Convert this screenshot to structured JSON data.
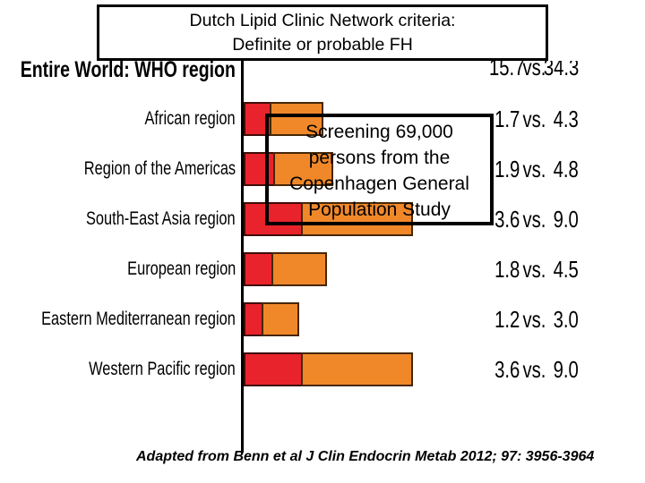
{
  "slide": {
    "title": "Dutch Lipid Clinic Network criteria:\nDefinite or probable FH",
    "annotation": "Screening 69,000\npersons from the\nCopenhagen General\nPopulation Study",
    "citation": "Adapted from Benn et al J Clin Endocrin Metab 2012; 97: 3956-3964"
  },
  "chart_data": {
    "type": "bar",
    "orientation": "horizontal",
    "title": "Dutch Lipid Clinic Network criteria: Definite or probable FH",
    "xlabel": "",
    "ylabel": "",
    "legend": "none",
    "gridlines": false,
    "value_format": "value1 vs. value2",
    "separator": "vs.",
    "colors": {
      "segment1": "#e8232b",
      "segment2": "#f0882a"
    },
    "categories": [
      "Entire World: WHO region",
      "African region",
      "Region of the Americas",
      "South-East Asia region",
      "European region",
      "Eastern Mediterranean region",
      "Western Pacific region"
    ],
    "series": [
      {
        "name": "value1",
        "values": [
          15.7,
          1.7,
          1.9,
          3.6,
          1.8,
          1.2,
          3.6
        ]
      },
      {
        "name": "value2",
        "values": [
          34.3,
          4.3,
          4.8,
          9.0,
          4.5,
          3.0,
          9.0
        ]
      }
    ],
    "rows": [
      {
        "label": "Entire World: WHO region",
        "value1": "15.7",
        "value2": "34.3",
        "bar_visible": false
      },
      {
        "label": "African region",
        "value1": "1.7",
        "value2": "4.3",
        "bar_visible": true
      },
      {
        "label": "Region of the Americas",
        "value1": "1.9",
        "value2": "4.8",
        "bar_visible": true
      },
      {
        "label": "South-East Asia region",
        "value1": "3.6",
        "value2": "9.0",
        "bar_visible": true
      },
      {
        "label": "European region",
        "value1": "1.8",
        "value2": "4.5",
        "bar_visible": true
      },
      {
        "label": "Eastern Mediterranean region",
        "value1": "1.2",
        "value2": "3.0",
        "bar_visible": true
      },
      {
        "label": "Western Pacific region",
        "value1": "3.6",
        "value2": "9.0",
        "bar_visible": true
      }
    ]
  }
}
